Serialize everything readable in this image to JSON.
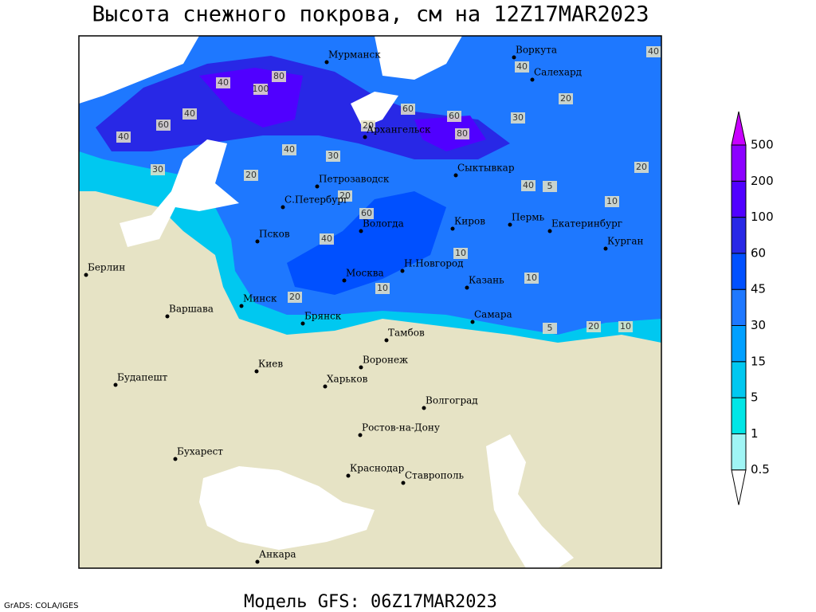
{
  "title": "Высота снежного покрова, см на 12Z17MAR2023",
  "footer": "Модель GFS: 06Z17MAR2023",
  "credit": "GrADS: COLA/IGES",
  "cities": [
    "Мурманск",
    "Воркута",
    "Салехард",
    "Архангельск",
    "Сыктывкар",
    "Петрозаводск",
    "С.Петербург",
    "Вологда",
    "Киров",
    "Пермь",
    "Екатеринбург",
    "Курган",
    "Псков",
    "Москва",
    "Н.Новгород",
    "Казань",
    "Берлин",
    "Варшава",
    "Минск",
    "Брянск",
    "Тамбов",
    "Самара",
    "Киев",
    "Воронеж",
    "Харьков",
    "Волгоград",
    "Будапешт",
    "Бухарест",
    "Ростов-на-Дону",
    "Краснодар",
    "Ставрополь",
    "Анкара"
  ],
  "contour_labels": [
    40,
    100,
    80,
    40,
    60,
    40,
    30,
    20,
    60,
    80,
    60,
    20,
    40,
    30,
    20,
    40,
    60,
    10,
    5,
    10,
    20,
    40,
    30,
    20,
    10,
    5,
    10,
    20,
    10,
    40,
    20,
    40
  ],
  "colorbar": {
    "levels": [
      0.5,
      1,
      5,
      15,
      30,
      45,
      60,
      100,
      200,
      500
    ],
    "colors": [
      "#ffffff",
      "#a0f5f5",
      "#00e6e6",
      "#00c8f0",
      "#00a0ff",
      "#1e78ff",
      "#0050ff",
      "#2828e6",
      "#5000ff",
      "#8c00ff",
      "#c800ff"
    ]
  }
}
